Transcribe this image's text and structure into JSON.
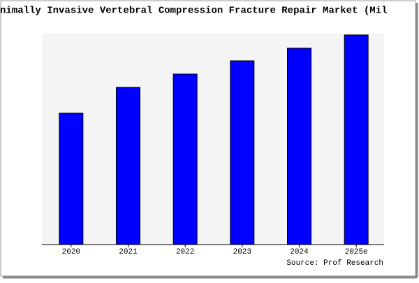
{
  "chart_data": {
    "type": "bar",
    "title": "nimally Invasive Vertebral Compression Fracture Repair Market (Mil",
    "categories": [
      "2020",
      "2021",
      "2022",
      "2023",
      "2024",
      "2025e"
    ],
    "values": [
      188,
      225,
      244,
      263,
      281,
      300
    ],
    "color": "#0000ff",
    "ylim": [
      0,
      300
    ],
    "source": "Source: Prof Research"
  }
}
